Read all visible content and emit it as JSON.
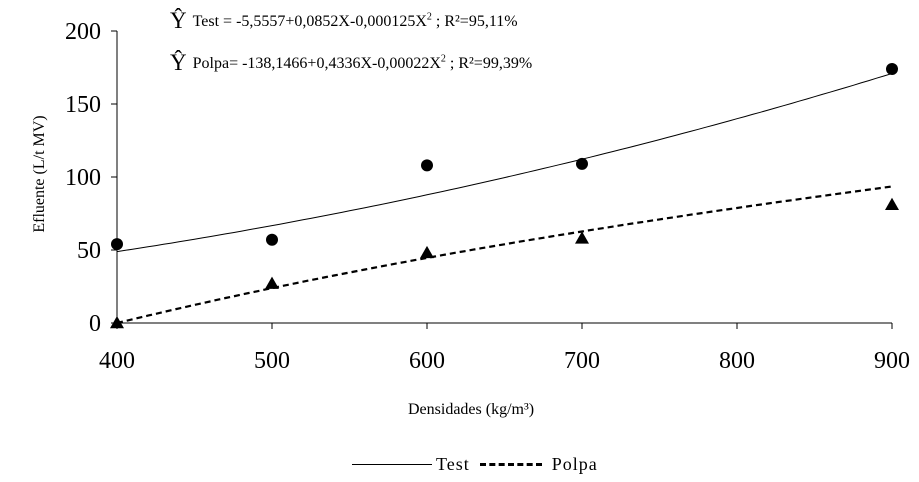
{
  "chart_data": {
    "type": "scatter",
    "xlabel": "Densidades (kg/m³)",
    "ylabel": "Efluente (L/t MV)",
    "xlim": [
      400,
      900
    ],
    "ylim": [
      0,
      200
    ],
    "xticks": [
      "400",
      "500",
      "600",
      "700",
      "800",
      "900"
    ],
    "yticks": [
      "0",
      "50",
      "100",
      "150",
      "200"
    ],
    "legend_position": "bottom",
    "grid": false,
    "series": [
      {
        "name": "Test",
        "marker": "circle",
        "line": "solid",
        "points": [
          [
            400,
            54
          ],
          [
            500,
            57
          ],
          [
            600,
            108
          ],
          [
            700,
            109
          ],
          [
            900,
            174
          ]
        ],
        "equation": {
          "label": "Test = -5,5557+0,0852X-0,000125X",
          "r2": "; R²=95,11%"
        }
      },
      {
        "name": "Polpa",
        "marker": "triangle",
        "line": "dashed",
        "points": [
          [
            400,
            0
          ],
          [
            500,
            27
          ],
          [
            600,
            48
          ],
          [
            700,
            58
          ],
          [
            900,
            81
          ]
        ],
        "equation": {
          "label": "Polpa= -138,1466+0,4336X-0,00022X",
          "r2": "; R²=99,39%"
        }
      }
    ],
    "yhat_symbol": "Ŷ"
  }
}
